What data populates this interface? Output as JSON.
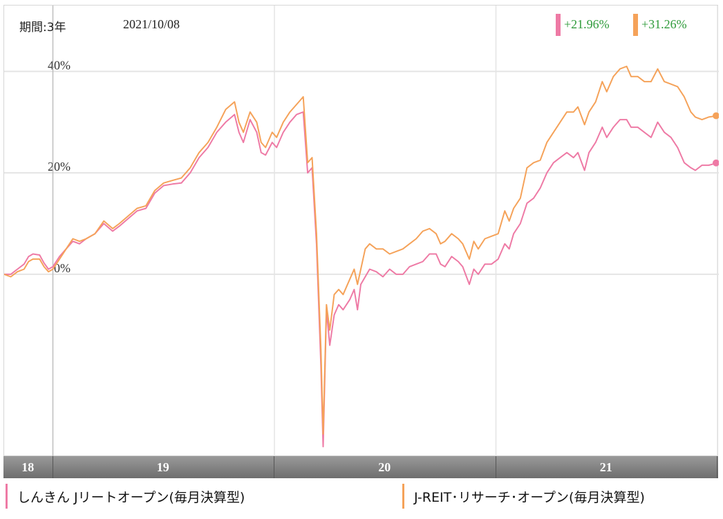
{
  "header": {
    "period": "期間:3年",
    "date": "2021/10/08"
  },
  "returns": [
    {
      "text": "+21.96%",
      "color": "#ee7aa5"
    },
    {
      "text": "+31.26%",
      "color": "#f5a259"
    }
  ],
  "legend": [
    {
      "label": "しんきん Jリートオープン(毎月決算型)",
      "color": "#ee7aa5"
    },
    {
      "label": "J-REIT･リサーチ･オープン(毎月決算型)",
      "color": "#f5a259"
    }
  ],
  "chart_data": {
    "type": "line",
    "y_ticks": [
      {
        "value": 0,
        "label": "0%"
      },
      {
        "value": 20,
        "label": "20%"
      },
      {
        "value": 40,
        "label": "40%"
      }
    ],
    "ylim": [
      -36,
      53
    ],
    "grid": true,
    "x_ticks": [
      {
        "label": "18",
        "x": 0.5
      },
      {
        "label": "19",
        "x": 1.0
      },
      {
        "label": "20",
        "x": 2.0
      },
      {
        "label": "21",
        "x": 3.0
      }
    ],
    "year_boundaries": [
      0.0,
      1.0,
      2.0,
      3.0
    ],
    "xlim": [
      -0.22,
      3.0
    ],
    "series": [
      {
        "name": "しんきん Jリートオープン(毎月決算型)",
        "color": "#ee7aa5",
        "points": [
          [
            -0.22,
            0.0
          ],
          [
            -0.19,
            0.0
          ],
          [
            -0.16,
            1.0
          ],
          [
            -0.13,
            2.0
          ],
          [
            -0.11,
            3.5
          ],
          [
            -0.09,
            4.0
          ],
          [
            -0.06,
            3.8
          ],
          [
            -0.04,
            2.2
          ],
          [
            -0.02,
            1.0
          ],
          [
            0.0,
            1.5
          ],
          [
            0.03,
            3.5
          ],
          [
            0.06,
            5.0
          ],
          [
            0.09,
            6.5
          ],
          [
            0.12,
            6.0
          ],
          [
            0.15,
            7.0
          ],
          [
            0.19,
            8.0
          ],
          [
            0.23,
            10.0
          ],
          [
            0.27,
            8.5
          ],
          [
            0.3,
            9.5
          ],
          [
            0.34,
            11.0
          ],
          [
            0.38,
            12.5
          ],
          [
            0.42,
            13.0
          ],
          [
            0.46,
            16.0
          ],
          [
            0.5,
            17.5
          ],
          [
            0.54,
            17.8
          ],
          [
            0.58,
            18.0
          ],
          [
            0.62,
            20.0
          ],
          [
            0.66,
            23.0
          ],
          [
            0.7,
            25.0
          ],
          [
            0.74,
            28.0
          ],
          [
            0.78,
            30.0
          ],
          [
            0.82,
            31.5
          ],
          [
            0.84,
            28.0
          ],
          [
            0.86,
            26.0
          ],
          [
            0.89,
            30.5
          ],
          [
            0.92,
            28.0
          ],
          [
            0.94,
            24.0
          ],
          [
            0.96,
            23.5
          ],
          [
            0.99,
            26.0
          ],
          [
            1.01,
            25.0
          ],
          [
            1.04,
            28.0
          ],
          [
            1.07,
            30.0
          ],
          [
            1.1,
            31.5
          ],
          [
            1.13,
            32.0
          ],
          [
            1.15,
            20.0
          ],
          [
            1.17,
            21.0
          ],
          [
            1.19,
            6.0
          ],
          [
            1.21,
            -18.0
          ],
          [
            1.22,
            -34.0
          ],
          [
            1.235,
            -7.0
          ],
          [
            1.25,
            -14.0
          ],
          [
            1.27,
            -8.0
          ],
          [
            1.29,
            -6.0
          ],
          [
            1.31,
            -7.0
          ],
          [
            1.34,
            -5.0
          ],
          [
            1.36,
            -3.0
          ],
          [
            1.375,
            -7.0
          ],
          [
            1.39,
            -2.0
          ],
          [
            1.41,
            -0.5
          ],
          [
            1.43,
            1.0
          ],
          [
            1.46,
            0.5
          ],
          [
            1.49,
            -0.5
          ],
          [
            1.52,
            1.0
          ],
          [
            1.55,
            0.0
          ],
          [
            1.58,
            0.0
          ],
          [
            1.61,
            1.5
          ],
          [
            1.64,
            2.0
          ],
          [
            1.67,
            2.5
          ],
          [
            1.7,
            4.0
          ],
          [
            1.73,
            4.0
          ],
          [
            1.75,
            2.0
          ],
          [
            1.77,
            1.5
          ],
          [
            1.8,
            3.5
          ],
          [
            1.83,
            2.5
          ],
          [
            1.85,
            1.5
          ],
          [
            1.88,
            -2.0
          ],
          [
            1.9,
            1.0
          ],
          [
            1.92,
            0.0
          ],
          [
            1.95,
            2.0
          ],
          [
            1.98,
            2.0
          ],
          [
            2.01,
            3.0
          ],
          [
            2.04,
            6.0
          ],
          [
            2.06,
            5.0
          ],
          [
            2.08,
            8.0
          ],
          [
            2.11,
            10.0
          ],
          [
            2.14,
            14.0
          ],
          [
            2.17,
            15.0
          ],
          [
            2.2,
            17.0
          ],
          [
            2.23,
            20.0
          ],
          [
            2.26,
            22.0
          ],
          [
            2.29,
            23.0
          ],
          [
            2.32,
            24.0
          ],
          [
            2.35,
            23.0
          ],
          [
            2.37,
            24.0
          ],
          [
            2.4,
            20.5
          ],
          [
            2.42,
            24.0
          ],
          [
            2.45,
            26.0
          ],
          [
            2.48,
            29.0
          ],
          [
            2.5,
            27.0
          ],
          [
            2.53,
            29.0
          ],
          [
            2.56,
            30.5
          ],
          [
            2.59,
            30.5
          ],
          [
            2.61,
            29.0
          ],
          [
            2.64,
            29.0
          ],
          [
            2.67,
            28.0
          ],
          [
            2.7,
            27.0
          ],
          [
            2.73,
            30.0
          ],
          [
            2.76,
            28.0
          ],
          [
            2.79,
            27.0
          ],
          [
            2.82,
            25.0
          ],
          [
            2.85,
            22.0
          ],
          [
            2.88,
            21.0
          ],
          [
            2.9,
            20.5
          ],
          [
            2.93,
            21.5
          ],
          [
            2.96,
            21.5
          ],
          [
            3.0,
            21.96
          ]
        ]
      },
      {
        "name": "J-REIT･リサーチ･オープン(毎月決算型)",
        "color": "#f5a259",
        "points": [
          [
            -0.22,
            0.0
          ],
          [
            -0.19,
            -0.5
          ],
          [
            -0.16,
            0.5
          ],
          [
            -0.13,
            1.0
          ],
          [
            -0.11,
            2.5
          ],
          [
            -0.09,
            3.0
          ],
          [
            -0.06,
            3.0
          ],
          [
            -0.04,
            1.5
          ],
          [
            -0.02,
            0.5
          ],
          [
            0.0,
            1.0
          ],
          [
            0.03,
            3.0
          ],
          [
            0.06,
            5.0
          ],
          [
            0.09,
            7.0
          ],
          [
            0.12,
            6.5
          ],
          [
            0.15,
            7.0
          ],
          [
            0.19,
            8.0
          ],
          [
            0.23,
            10.5
          ],
          [
            0.27,
            9.0
          ],
          [
            0.3,
            10.0
          ],
          [
            0.34,
            11.5
          ],
          [
            0.38,
            13.0
          ],
          [
            0.42,
            13.5
          ],
          [
            0.46,
            16.5
          ],
          [
            0.5,
            18.0
          ],
          [
            0.54,
            18.5
          ],
          [
            0.58,
            19.0
          ],
          [
            0.62,
            21.0
          ],
          [
            0.66,
            24.0
          ],
          [
            0.7,
            26.0
          ],
          [
            0.74,
            29.0
          ],
          [
            0.78,
            32.5
          ],
          [
            0.82,
            34.0
          ],
          [
            0.84,
            30.0
          ],
          [
            0.86,
            28.0
          ],
          [
            0.89,
            32.0
          ],
          [
            0.92,
            30.0
          ],
          [
            0.94,
            26.0
          ],
          [
            0.96,
            25.0
          ],
          [
            0.99,
            28.0
          ],
          [
            1.01,
            27.0
          ],
          [
            1.04,
            30.0
          ],
          [
            1.07,
            32.0
          ],
          [
            1.1,
            33.5
          ],
          [
            1.13,
            35.0
          ],
          [
            1.15,
            22.0
          ],
          [
            1.17,
            23.0
          ],
          [
            1.19,
            8.0
          ],
          [
            1.21,
            -15.0
          ],
          [
            1.22,
            -31.5
          ],
          [
            1.235,
            -6.0
          ],
          [
            1.25,
            -11.0
          ],
          [
            1.27,
            -4.0
          ],
          [
            1.29,
            -3.0
          ],
          [
            1.31,
            -4.0
          ],
          [
            1.34,
            -1.0
          ],
          [
            1.36,
            1.0
          ],
          [
            1.375,
            -2.0
          ],
          [
            1.39,
            1.0
          ],
          [
            1.41,
            5.0
          ],
          [
            1.43,
            6.0
          ],
          [
            1.46,
            5.0
          ],
          [
            1.49,
            5.0
          ],
          [
            1.52,
            4.0
          ],
          [
            1.55,
            4.5
          ],
          [
            1.58,
            5.0
          ],
          [
            1.61,
            6.0
          ],
          [
            1.64,
            7.0
          ],
          [
            1.67,
            8.5
          ],
          [
            1.7,
            9.0
          ],
          [
            1.73,
            8.0
          ],
          [
            1.75,
            6.0
          ],
          [
            1.77,
            6.5
          ],
          [
            1.8,
            8.0
          ],
          [
            1.83,
            7.0
          ],
          [
            1.85,
            6.0
          ],
          [
            1.88,
            3.0
          ],
          [
            1.9,
            6.5
          ],
          [
            1.92,
            5.0
          ],
          [
            1.95,
            7.0
          ],
          [
            1.98,
            7.5
          ],
          [
            2.01,
            8.0
          ],
          [
            2.04,
            12.5
          ],
          [
            2.06,
            10.5
          ],
          [
            2.08,
            13.0
          ],
          [
            2.11,
            15.0
          ],
          [
            2.14,
            21.0
          ],
          [
            2.17,
            22.0
          ],
          [
            2.2,
            22.5
          ],
          [
            2.23,
            26.0
          ],
          [
            2.26,
            28.0
          ],
          [
            2.29,
            30.0
          ],
          [
            2.32,
            32.0
          ],
          [
            2.35,
            32.0
          ],
          [
            2.37,
            33.0
          ],
          [
            2.4,
            29.5
          ],
          [
            2.42,
            32.0
          ],
          [
            2.45,
            34.0
          ],
          [
            2.48,
            38.0
          ],
          [
            2.5,
            36.0
          ],
          [
            2.53,
            39.0
          ],
          [
            2.56,
            40.5
          ],
          [
            2.59,
            41.0
          ],
          [
            2.61,
            39.0
          ],
          [
            2.64,
            39.0
          ],
          [
            2.67,
            38.0
          ],
          [
            2.7,
            38.0
          ],
          [
            2.73,
            40.5
          ],
          [
            2.76,
            38.0
          ],
          [
            2.79,
            37.5
          ],
          [
            2.82,
            37.0
          ],
          [
            2.85,
            35.0
          ],
          [
            2.88,
            32.0
          ],
          [
            2.9,
            31.0
          ],
          [
            2.93,
            30.5
          ],
          [
            2.96,
            31.0
          ],
          [
            3.0,
            31.26
          ]
        ]
      }
    ]
  }
}
